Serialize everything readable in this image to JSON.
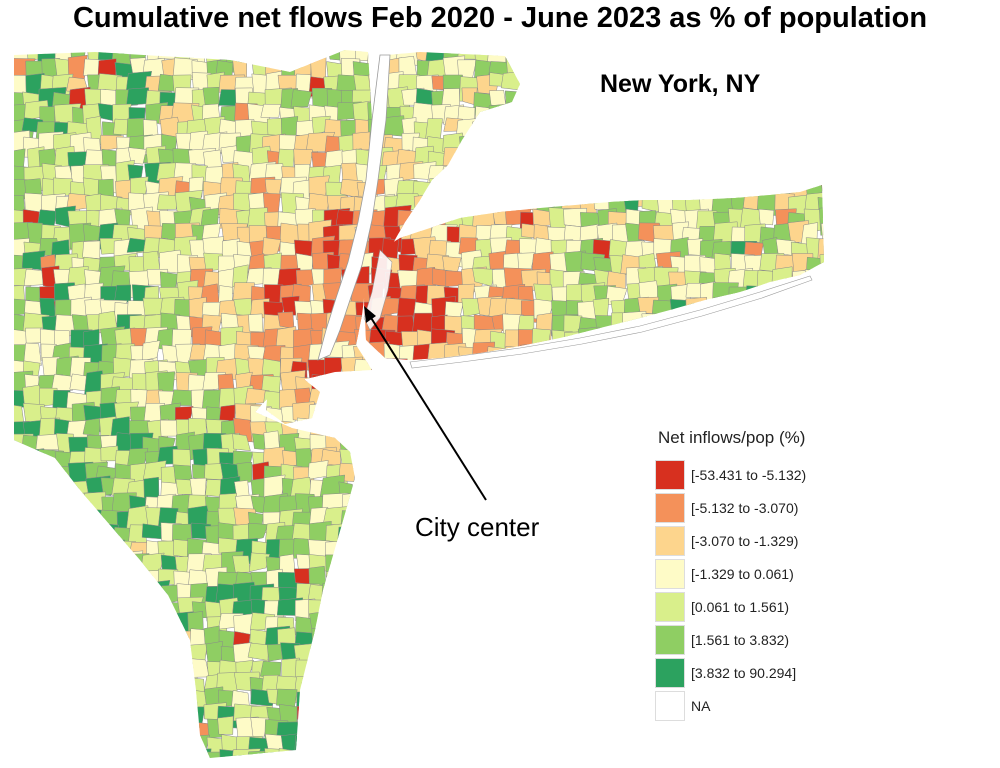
{
  "title": "Cumulative net flows Feb 2020 - June 2023 as % of population",
  "region_title": "New York, NY",
  "annotation": {
    "label": "City center"
  },
  "legend": {
    "title": "Net inflows/pop (%)",
    "items": [
      {
        "label": "[-53.431 to -5.132)",
        "color": "#d7301f"
      },
      {
        "label": "[-5.132 to -3.070)",
        "color": "#f4915a"
      },
      {
        "label": "[-3.070 to -1.329)",
        "color": "#fdd58d"
      },
      {
        "label": "[-1.329 to 0.061)",
        "color": "#fefbc7"
      },
      {
        "label": "[0.061 to 1.561)",
        "color": "#d9ef8b"
      },
      {
        "label": "[1.561 to 3.832)",
        "color": "#8fce63"
      },
      {
        "label": "[3.832 to 90.294]",
        "color": "#2ca25f"
      },
      {
        "label": "NA",
        "color": "#ffffff"
      }
    ]
  },
  "colors": {
    "border": "#8a8a8a",
    "water": "#ffffff"
  }
}
